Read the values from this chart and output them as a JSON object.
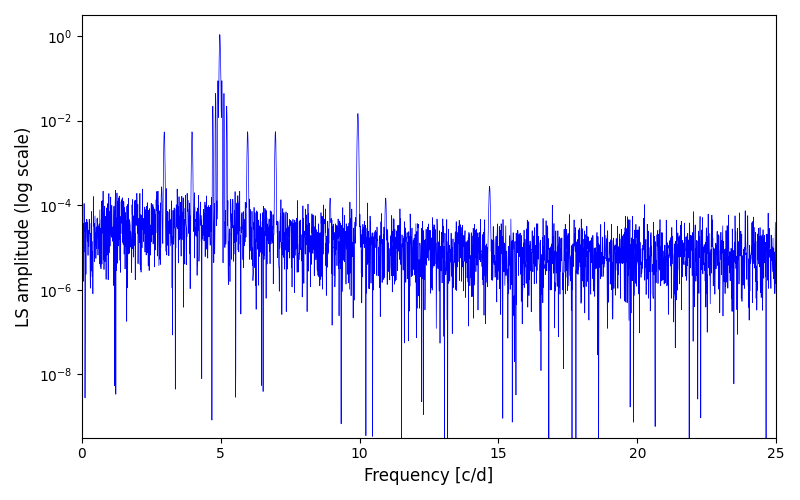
{
  "xlabel": "Frequency [c/d]",
  "ylabel": "LS amplitude (log scale)",
  "xlim": [
    0,
    25
  ],
  "ylim_log": [
    -9.5,
    0.5
  ],
  "xticks": [
    0,
    5,
    10,
    15,
    20,
    25
  ],
  "line_color": "#0000ff",
  "background_color": "#ffffff",
  "freq_max": 25,
  "n_points": 3000,
  "peak1_freq": 4.97,
  "peak1_amp": 1.1,
  "peak2_freq": 9.94,
  "peak2_amp": 0.015,
  "peak3_freq": 14.68,
  "peak3_amp": 0.00028,
  "noise_base_low": 5e-05,
  "noise_base_high": 5e-06,
  "seed": 137
}
